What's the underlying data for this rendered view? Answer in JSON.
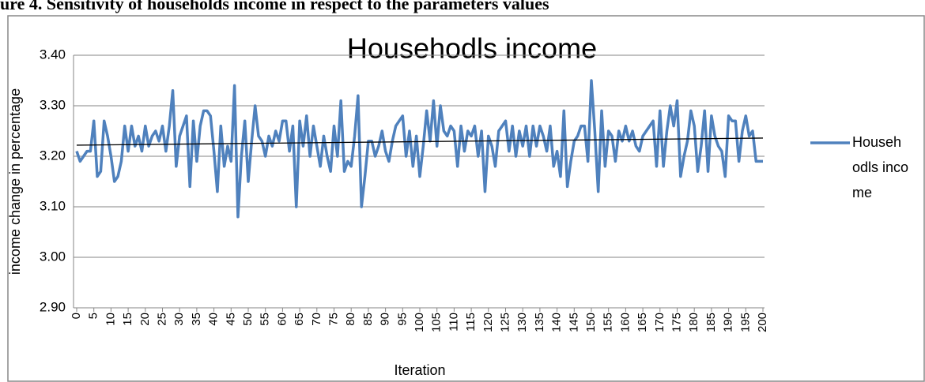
{
  "chart_data": {
    "type": "line",
    "caption": "ure 4.    Sensitivity of households income in respect to the parameters values",
    "title": "Househodls income",
    "x_label": "Iteration",
    "y_label": "income change in percentage",
    "legend": "right",
    "grid": true,
    "xlim": [
      0,
      200
    ],
    "xticks": [
      0,
      5,
      10,
      15,
      20,
      25,
      30,
      35,
      40,
      45,
      50,
      55,
      60,
      65,
      70,
      75,
      80,
      85,
      90,
      95,
      100,
      105,
      110,
      115,
      120,
      125,
      130,
      135,
      140,
      145,
      150,
      155,
      160,
      165,
      170,
      175,
      180,
      185,
      190,
      195,
      200
    ],
    "ylim": [
      2.9,
      3.4
    ],
    "yticks": [
      {
        "value": 2.9,
        "label": "2.90"
      },
      {
        "value": 3.0,
        "label": "3.00"
      },
      {
        "value": 3.1,
        "label": "3.10"
      },
      {
        "value": 3.2,
        "label": "3.20"
      },
      {
        "value": 3.3,
        "label": "3.30"
      },
      {
        "value": 3.4,
        "label": "3.40"
      }
    ],
    "x": [
      0,
      1,
      2,
      3,
      4,
      5,
      6,
      7,
      8,
      9,
      10,
      11,
      12,
      13,
      14,
      15,
      16,
      17,
      18,
      19,
      20,
      21,
      22,
      23,
      24,
      25,
      26,
      27,
      28,
      29,
      30,
      31,
      32,
      33,
      34,
      35,
      36,
      37,
      38,
      39,
      40,
      41,
      42,
      43,
      44,
      45,
      46,
      47,
      48,
      49,
      50,
      51,
      52,
      53,
      54,
      55,
      56,
      57,
      58,
      59,
      60,
      61,
      62,
      63,
      64,
      65,
      66,
      67,
      68,
      69,
      70,
      71,
      72,
      73,
      74,
      75,
      76,
      77,
      78,
      79,
      80,
      81,
      82,
      83,
      84,
      85,
      86,
      87,
      88,
      89,
      90,
      91,
      92,
      93,
      94,
      95,
      96,
      97,
      98,
      99,
      100,
      101,
      102,
      103,
      104,
      105,
      106,
      107,
      108,
      109,
      110,
      111,
      112,
      113,
      114,
      115,
      116,
      117,
      118,
      119,
      120,
      121,
      122,
      123,
      124,
      125,
      126,
      127,
      128,
      129,
      130,
      131,
      132,
      133,
      134,
      135,
      136,
      137,
      138,
      139,
      140,
      141,
      142,
      143,
      144,
      145,
      146,
      147,
      148,
      149,
      150,
      151,
      152,
      153,
      154,
      155,
      156,
      157,
      158,
      159,
      160,
      161,
      162,
      163,
      164,
      165,
      166,
      167,
      168,
      169,
      170,
      171,
      172,
      173,
      174,
      175,
      176,
      177,
      178,
      179,
      180,
      181,
      182,
      183,
      184,
      185,
      186,
      187,
      188,
      189,
      190,
      191,
      192,
      193,
      194,
      195,
      196,
      197,
      198,
      199,
      200
    ],
    "series": [
      {
        "name": "Househodls income",
        "color": "#4f81bd",
        "values": [
          3.21,
          3.19,
          3.2,
          3.21,
          3.21,
          3.27,
          3.16,
          3.17,
          3.27,
          3.24,
          3.2,
          3.15,
          3.16,
          3.19,
          3.26,
          3.21,
          3.26,
          3.22,
          3.24,
          3.21,
          3.26,
          3.22,
          3.24,
          3.25,
          3.23,
          3.26,
          3.21,
          3.26,
          3.33,
          3.18,
          3.24,
          3.26,
          3.28,
          3.14,
          3.27,
          3.19,
          3.26,
          3.29,
          3.29,
          3.28,
          3.21,
          3.13,
          3.26,
          3.18,
          3.22,
          3.19,
          3.34,
          3.08,
          3.2,
          3.27,
          3.15,
          3.23,
          3.3,
          3.24,
          3.23,
          3.2,
          3.24,
          3.22,
          3.25,
          3.23,
          3.27,
          3.27,
          3.21,
          3.26,
          3.1,
          3.27,
          3.22,
          3.28,
          3.2,
          3.26,
          3.22,
          3.18,
          3.24,
          3.2,
          3.17,
          3.26,
          3.2,
          3.31,
          3.17,
          3.19,
          3.18,
          3.24,
          3.32,
          3.1,
          3.16,
          3.23,
          3.23,
          3.2,
          3.22,
          3.25,
          3.21,
          3.19,
          3.23,
          3.26,
          3.27,
          3.28,
          3.2,
          3.25,
          3.18,
          3.24,
          3.16,
          3.22,
          3.29,
          3.23,
          3.31,
          3.22,
          3.3,
          3.25,
          3.24,
          3.26,
          3.25,
          3.18,
          3.26,
          3.21,
          3.25,
          3.24,
          3.26,
          3.2,
          3.25,
          3.13,
          3.24,
          3.22,
          3.18,
          3.25,
          3.26,
          3.27,
          3.21,
          3.26,
          3.2,
          3.25,
          3.22,
          3.26,
          3.2,
          3.26,
          3.22,
          3.26,
          3.24,
          3.21,
          3.26,
          3.18,
          3.21,
          3.16,
          3.29,
          3.14,
          3.19,
          3.23,
          3.24,
          3.26,
          3.26,
          3.19,
          3.35,
          3.25,
          3.13,
          3.29,
          3.18,
          3.25,
          3.24,
          3.19,
          3.25,
          3.23,
          3.26,
          3.23,
          3.25,
          3.22,
          3.21,
          3.24,
          3.25,
          3.26,
          3.27,
          3.18,
          3.29,
          3.18,
          3.25,
          3.3,
          3.26,
          3.31,
          3.16,
          3.2,
          3.23,
          3.29,
          3.26,
          3.17,
          3.22,
          3.29,
          3.17,
          3.28,
          3.24,
          3.22,
          3.21,
          3.16,
          3.28,
          3.27,
          3.27,
          3.19,
          3.25,
          3.28,
          3.24,
          3.25,
          3.19,
          3.19,
          3.19
        ]
      }
    ],
    "trendline": {
      "x": [
        0,
        200
      ],
      "values": [
        3.222,
        3.236
      ],
      "color": "#000000"
    }
  }
}
